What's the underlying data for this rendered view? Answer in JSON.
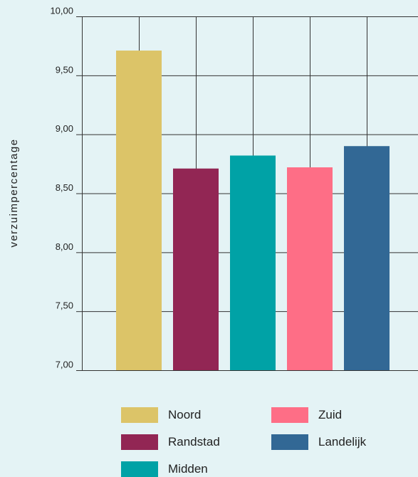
{
  "chart_data": {
    "type": "bar",
    "categories": [
      "Noord",
      "Randstad",
      "Midden",
      "Zuid",
      "Landelijk"
    ],
    "values": [
      9.71,
      8.71,
      8.82,
      8.72,
      8.9
    ],
    "colors": [
      "#dcc468",
      "#922654",
      "#00a2a6",
      "#fe6e86",
      "#326895"
    ],
    "ylabel": "verzuimpercentage",
    "ylim": [
      7.0,
      10.0
    ],
    "yticks": [
      7.0,
      7.5,
      8.0,
      8.5,
      9.0,
      9.5,
      10.0
    ],
    "ytick_labels": [
      "7,00",
      "7,50",
      "8,00",
      "8,50",
      "9,00",
      "9,50",
      "10,00"
    ],
    "grid": true,
    "legend_placement": "bottom"
  },
  "legend": {
    "items": [
      {
        "label": "Noord",
        "color": "#dcc468"
      },
      {
        "label": "Randstad",
        "color": "#922654"
      },
      {
        "label": "Midden",
        "color": "#00a2a6"
      },
      {
        "label": "Zuid",
        "color": "#fe6e86"
      },
      {
        "label": "Landelijk",
        "color": "#326895"
      }
    ]
  },
  "colors": {
    "background": "#e4f3f5",
    "grid": "#333333"
  }
}
